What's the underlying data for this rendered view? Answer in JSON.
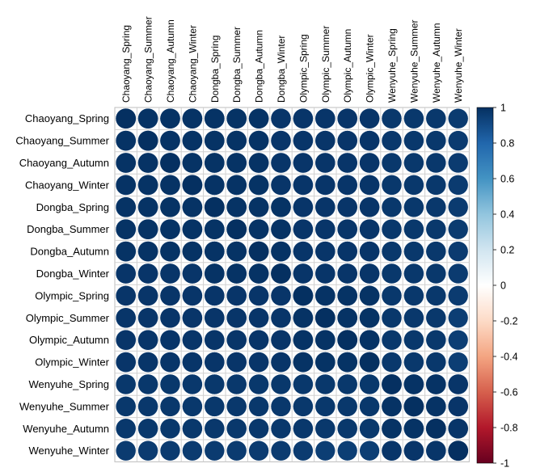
{
  "chart_data": {
    "type": "heatmap",
    "subtype": "correlation-circles",
    "title": "",
    "variables": [
      "Chaoyang_Spring",
      "Chaoyang_Summer",
      "Chaoyang_Autumn",
      "Chaoyang_Winter",
      "Dongba_Spring",
      "Dongba_Summer",
      "Dongba_Autumn",
      "Dongba_Winter",
      "Olympic_Spring",
      "Olympic_Summer",
      "Olympic_Autumn",
      "Olympic_Winter",
      "Wenyuhe_Spring",
      "Wenyuhe_Summer",
      "Wenyuhe_Autumn",
      "Wenyuhe_Winter"
    ],
    "values": [
      [
        1.0,
        0.99,
        0.99,
        0.99,
        0.99,
        0.99,
        0.99,
        0.98,
        0.98,
        0.98,
        0.98,
        0.98,
        0.97,
        0.97,
        0.97,
        0.96
      ],
      [
        0.99,
        1.0,
        0.99,
        0.99,
        0.99,
        0.99,
        0.99,
        0.98,
        0.98,
        0.98,
        0.98,
        0.98,
        0.97,
        0.97,
        0.97,
        0.96
      ],
      [
        0.99,
        0.99,
        1.0,
        0.99,
        0.99,
        0.99,
        0.99,
        0.98,
        0.98,
        0.98,
        0.98,
        0.98,
        0.97,
        0.97,
        0.97,
        0.96
      ],
      [
        0.99,
        0.99,
        0.99,
        1.0,
        0.99,
        0.99,
        0.99,
        0.98,
        0.98,
        0.98,
        0.98,
        0.98,
        0.97,
        0.97,
        0.97,
        0.96
      ],
      [
        0.99,
        0.99,
        0.99,
        0.99,
        1.0,
        0.99,
        0.99,
        0.99,
        0.98,
        0.98,
        0.98,
        0.98,
        0.97,
        0.97,
        0.97,
        0.96
      ],
      [
        0.99,
        0.99,
        0.99,
        0.99,
        0.99,
        1.0,
        0.99,
        0.99,
        0.98,
        0.98,
        0.98,
        0.98,
        0.97,
        0.97,
        0.97,
        0.96
      ],
      [
        0.99,
        0.99,
        0.99,
        0.99,
        0.99,
        0.99,
        1.0,
        0.99,
        0.98,
        0.98,
        0.98,
        0.98,
        0.97,
        0.97,
        0.97,
        0.96
      ],
      [
        0.98,
        0.98,
        0.98,
        0.98,
        0.99,
        0.99,
        0.99,
        1.0,
        0.98,
        0.98,
        0.98,
        0.98,
        0.97,
        0.97,
        0.97,
        0.96
      ],
      [
        0.98,
        0.98,
        0.98,
        0.98,
        0.98,
        0.98,
        0.98,
        0.98,
        1.0,
        0.99,
        0.99,
        0.99,
        0.97,
        0.97,
        0.97,
        0.96
      ],
      [
        0.98,
        0.98,
        0.98,
        0.98,
        0.98,
        0.98,
        0.98,
        0.98,
        0.99,
        1.0,
        0.99,
        0.99,
        0.97,
        0.97,
        0.97,
        0.95
      ],
      [
        0.98,
        0.98,
        0.98,
        0.98,
        0.98,
        0.98,
        0.98,
        0.98,
        0.99,
        0.99,
        1.0,
        0.99,
        0.97,
        0.97,
        0.97,
        0.95
      ],
      [
        0.98,
        0.98,
        0.98,
        0.98,
        0.98,
        0.98,
        0.98,
        0.98,
        0.99,
        0.99,
        0.99,
        1.0,
        0.97,
        0.97,
        0.97,
        0.95
      ],
      [
        0.97,
        0.97,
        0.97,
        0.97,
        0.97,
        0.97,
        0.97,
        0.97,
        0.97,
        0.97,
        0.97,
        0.97,
        1.0,
        0.99,
        0.99,
        0.98
      ],
      [
        0.97,
        0.97,
        0.97,
        0.97,
        0.97,
        0.97,
        0.97,
        0.97,
        0.97,
        0.97,
        0.97,
        0.97,
        0.99,
        1.0,
        0.99,
        0.98
      ],
      [
        0.97,
        0.97,
        0.97,
        0.97,
        0.97,
        0.97,
        0.97,
        0.97,
        0.97,
        0.97,
        0.97,
        0.97,
        0.99,
        0.99,
        1.0,
        0.98
      ],
      [
        0.96,
        0.96,
        0.96,
        0.96,
        0.96,
        0.96,
        0.96,
        0.96,
        0.96,
        0.95,
        0.95,
        0.95,
        0.98,
        0.98,
        0.98,
        1.0
      ]
    ],
    "color_scale": {
      "range": [
        -1,
        1
      ],
      "ticks": [
        "1",
        "0.8",
        "0.6",
        "0.4",
        "0.2",
        "0",
        "-0.2",
        "-0.4",
        "-0.6",
        "-0.8",
        "-1"
      ],
      "stops": [
        {
          "value": -1.0,
          "color": "#67001f"
        },
        {
          "value": -0.8,
          "color": "#b2182b"
        },
        {
          "value": -0.6,
          "color": "#d6604d"
        },
        {
          "value": -0.4,
          "color": "#f4a582"
        },
        {
          "value": -0.2,
          "color": "#fddbc7"
        },
        {
          "value": 0.0,
          "color": "#ffffff"
        },
        {
          "value": 0.2,
          "color": "#d1e5f0"
        },
        {
          "value": 0.4,
          "color": "#92c5de"
        },
        {
          "value": 0.6,
          "color": "#4393c3"
        },
        {
          "value": 0.8,
          "color": "#2166ac"
        },
        {
          "value": 1.0,
          "color": "#053061"
        }
      ]
    },
    "grid": true,
    "legend_position": "right"
  }
}
